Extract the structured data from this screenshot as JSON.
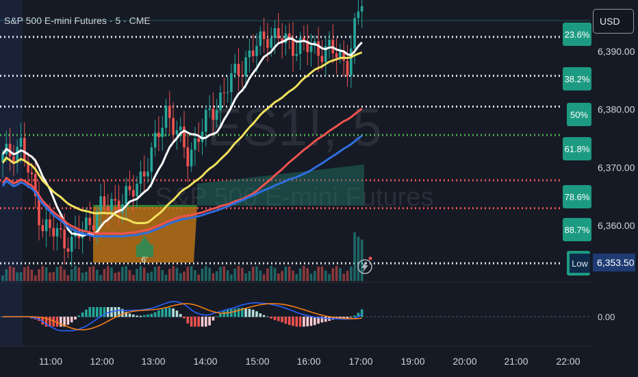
{
  "header": {
    "symbol_title": "S&P 500 E-mini Futures · 5 · CME",
    "currency_button": "USD"
  },
  "watermark": {
    "ticker": "ES1!, 5",
    "name": "S&P 500 E-mini Futures"
  },
  "colors": {
    "background": "#161a25",
    "bull": "#26a69a",
    "bear": "#ef5350",
    "ema_white": "#ffffff",
    "ema_yellow": "#f2e25c",
    "ema_red": "#ef5350",
    "ema_blue": "#2f6fe0",
    "fib_label": "#1d9b82",
    "macd_line": "#2962ff",
    "signal_line": "#f57f17"
  },
  "chart_data": {
    "type": "candlestick",
    "x_tick_labels": [
      "11:00",
      "12:00",
      "13:00",
      "14:00",
      "15:00",
      "16:00",
      "17:00",
      "19:00",
      "20:00",
      "21:00",
      "22:00"
    ],
    "price_axis": {
      "tick_labels": [
        "6,390.00",
        "6,380.00",
        "6,370.00",
        "6,360.00"
      ],
      "ylim": [
        6349,
        6398
      ]
    },
    "current_price_label": "6,353.50",
    "fib_levels": [
      {
        "label": "23.6%",
        "price": 6392.5,
        "color": "white"
      },
      {
        "label": "38.2%",
        "price": 6385.8,
        "color": "white"
      },
      {
        "label": "50%",
        "price": 6380.5,
        "color": "white"
      },
      {
        "label": "61.8%",
        "price": 6375.6,
        "color": "green"
      },
      {
        "label": "78.6%",
        "price": 6367.8,
        "color": "red"
      },
      {
        "label": "88.7%",
        "price": 6363.0,
        "color": "red"
      },
      {
        "label": "Low",
        "price": 6353.5,
        "color": "white"
      }
    ],
    "zone_label": "6'",
    "macd_zero_label": "0.00",
    "grid": false
  }
}
